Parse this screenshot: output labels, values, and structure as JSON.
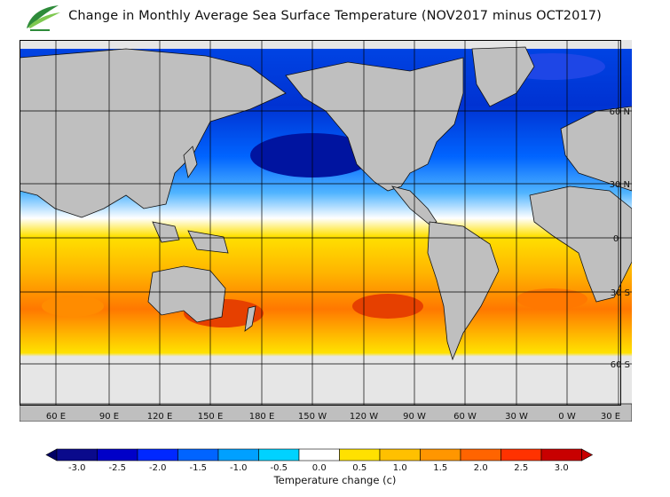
{
  "header": {
    "title": "Change in Monthly Average Sea Surface Temperature (NOV2017 minus OCT2017)"
  },
  "logo": {
    "icon": "leaf-logo-icon"
  },
  "map": {
    "lat_labels": [
      "60 N",
      "30 N",
      "0",
      "30 S",
      "60 S"
    ],
    "lon_labels": [
      "60 E",
      "90 E",
      "120 E",
      "150 E",
      "180 E",
      "150 W",
      "120 W",
      "90 W",
      "60 W",
      "30 W",
      "0 W",
      "30 E"
    ],
    "land_color": "#bfbfbf",
    "ice_color": "#e6e6e6"
  },
  "colorbar": {
    "title": "Temperature change  (c)",
    "tick_labels": [
      "-3.0",
      "-2.5",
      "-2.0",
      "-1.5",
      "-1.0",
      "-0.5",
      "0.0",
      "0.5",
      "1.0",
      "1.5",
      "2.0",
      "2.5",
      "3.0"
    ],
    "colors": [
      "#0a0a8c",
      "#0000c8",
      "#0028ff",
      "#0064ff",
      "#00a0ff",
      "#00d2ff",
      "#ffffff",
      "#ffe100",
      "#ffc000",
      "#ff9600",
      "#ff6400",
      "#ff3200",
      "#c80000"
    ],
    "under_color": "#000066",
    "over_color": "#c80000"
  }
}
